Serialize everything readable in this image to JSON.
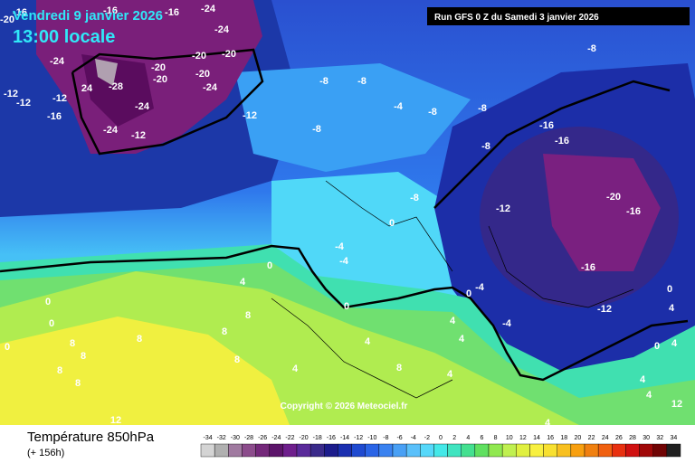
{
  "header": {
    "date": "Vendredi 9 janvier 2026",
    "time": "13:00 locale",
    "run": "Run GFS 0 Z du Samedi 3 janvier 2026"
  },
  "map": {
    "labels": [
      -16,
      -20,
      -16,
      -16,
      -24,
      -24,
      -24,
      -20,
      -20,
      -20,
      -20,
      -20,
      -24,
      24,
      -28,
      -12,
      -12,
      -12,
      -16,
      -24,
      -24,
      -12,
      -12,
      -8,
      -8,
      -4,
      -8,
      -8,
      -8,
      -8,
      -16,
      -16,
      -8,
      -20,
      -16,
      -12,
      -8,
      0,
      -4,
      -4,
      0,
      -16,
      -12,
      -4,
      0,
      -4,
      0,
      4,
      8,
      8,
      8,
      8,
      8,
      8,
      8,
      8,
      0,
      0,
      0,
      4,
      4,
      4,
      4,
      8,
      4,
      4,
      4,
      0,
      0,
      4,
      12,
      12,
      4,
      4
    ],
    "copyright": "Copyright © 2026 Meteociel.fr"
  },
  "footer": {
    "title": "Température 850hPa",
    "lead": "(+ 156h)"
  },
  "legend": {
    "values": [
      -34,
      -32,
      -30,
      -28,
      -26,
      -24,
      -22,
      -20,
      -18,
      -16,
      -14,
      -12,
      -10,
      -8,
      -6,
      -4,
      -2,
      0,
      2,
      4,
      6,
      8,
      10,
      12,
      14,
      16,
      18,
      20,
      22,
      24,
      26,
      28,
      30,
      32,
      34
    ],
    "colors": [
      "#d4d4d4",
      "#b0b0b0",
      "#a07aa0",
      "#8c4c8c",
      "#74287a",
      "#5c146a",
      "#6e1e8c",
      "#5a2a9a",
      "#3a2a8a",
      "#1c1c8c",
      "#1a2fb0",
      "#1f4ad0",
      "#2a64e6",
      "#3a82f0",
      "#49a0f5",
      "#5ac0fa",
      "#56d8fa",
      "#44e8e8",
      "#40e4c0",
      "#44e090",
      "#60e060",
      "#90e850",
      "#c0f050",
      "#e0f040",
      "#f8f040",
      "#f8e030",
      "#f8c020",
      "#f8a010",
      "#f08010",
      "#f06010",
      "#e83010",
      "#d01010",
      "#a00808",
      "#700404",
      "#202020"
    ]
  }
}
